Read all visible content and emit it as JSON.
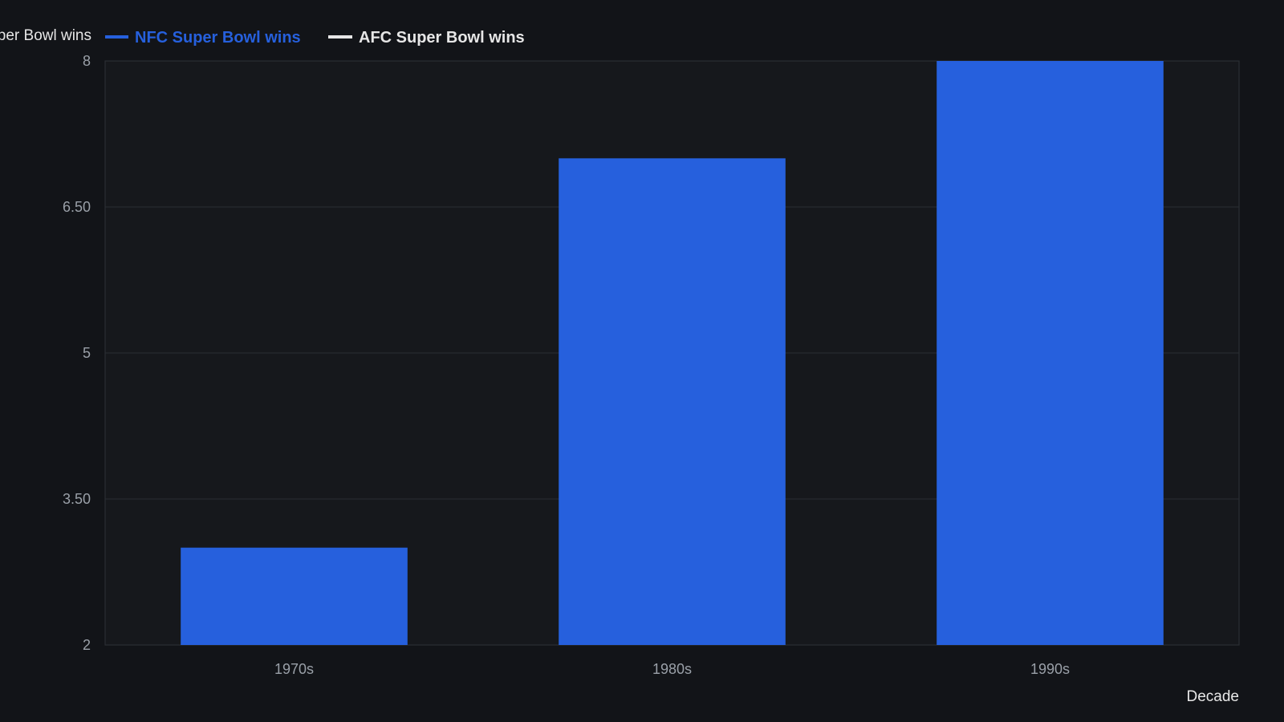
{
  "colors": {
    "background": "#121418",
    "plot_background": "#16181c",
    "grid": "#2b2e33",
    "nfc": "#2660dd",
    "afc": "#e6e6e6",
    "cut_label": "#e6e6e6"
  },
  "legend": {
    "cut_off_text": "per Bowl wins",
    "items": [
      {
        "label": "NFC Super Bowl wins",
        "color": "#2660dd"
      },
      {
        "label": "AFC Super Bowl wins",
        "color": "#e6e6e6"
      }
    ]
  },
  "chart_data": {
    "type": "bar",
    "categories": [
      "1970s",
      "1980s",
      "1990s"
    ],
    "series": [
      {
        "name": "NFC Super Bowl wins",
        "values": [
          3,
          7,
          8
        ]
      }
    ],
    "xlabel": "Decade",
    "ylabel": "",
    "ylim": [
      2,
      8
    ],
    "yticks": [
      2,
      3.5,
      5,
      6.5,
      8
    ],
    "ytick_labels": [
      "2",
      "3.50",
      "5",
      "6.50",
      "8"
    ],
    "grid": true,
    "legend_position": "top-left"
  }
}
